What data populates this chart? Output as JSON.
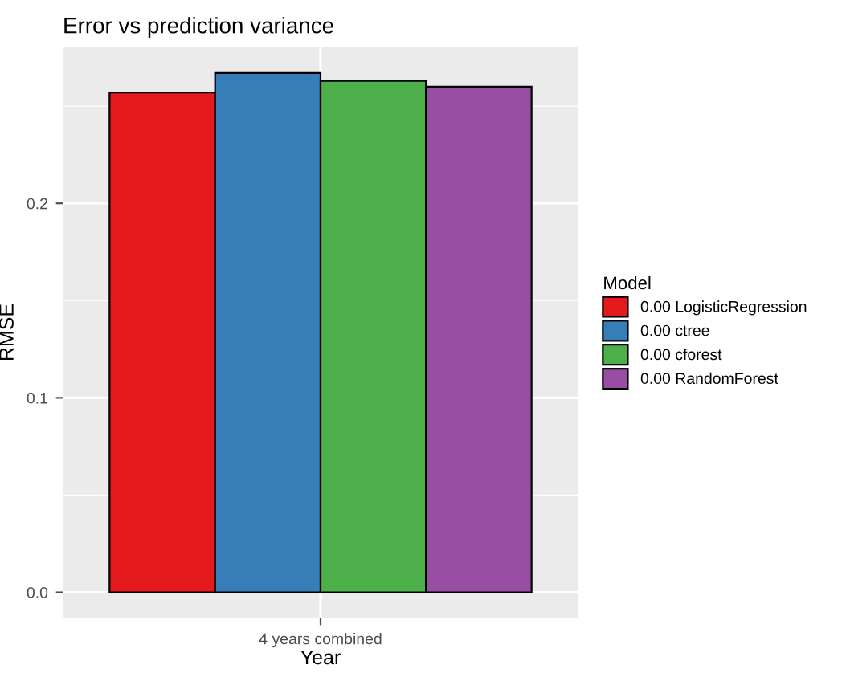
{
  "chart_data": {
    "type": "bar",
    "title": "Error vs prediction variance",
    "xlabel": "Year",
    "ylabel": "RMSE",
    "legend_title": "Model",
    "categories": [
      "4 years combined"
    ],
    "series": [
      {
        "name": "0.00 LogisticRegression",
        "color": "#e41a1c",
        "values": [
          0.257
        ]
      },
      {
        "name": "0.00 ctree",
        "color": "#377eb8",
        "values": [
          0.267
        ]
      },
      {
        "name": "0.00 cforest",
        "color": "#4daf4a",
        "values": [
          0.263
        ]
      },
      {
        "name": "0.00 RandomForest",
        "color": "#984ea3",
        "values": [
          0.26
        ]
      }
    ],
    "ylim": [
      -0.0134,
      0.2806
    ],
    "yticks": [
      {
        "value": 0,
        "label": "0.0"
      },
      {
        "value": 0.1,
        "label": "0.1"
      },
      {
        "value": 0.2,
        "label": "0.2"
      }
    ],
    "grid": true,
    "legend": "right"
  }
}
